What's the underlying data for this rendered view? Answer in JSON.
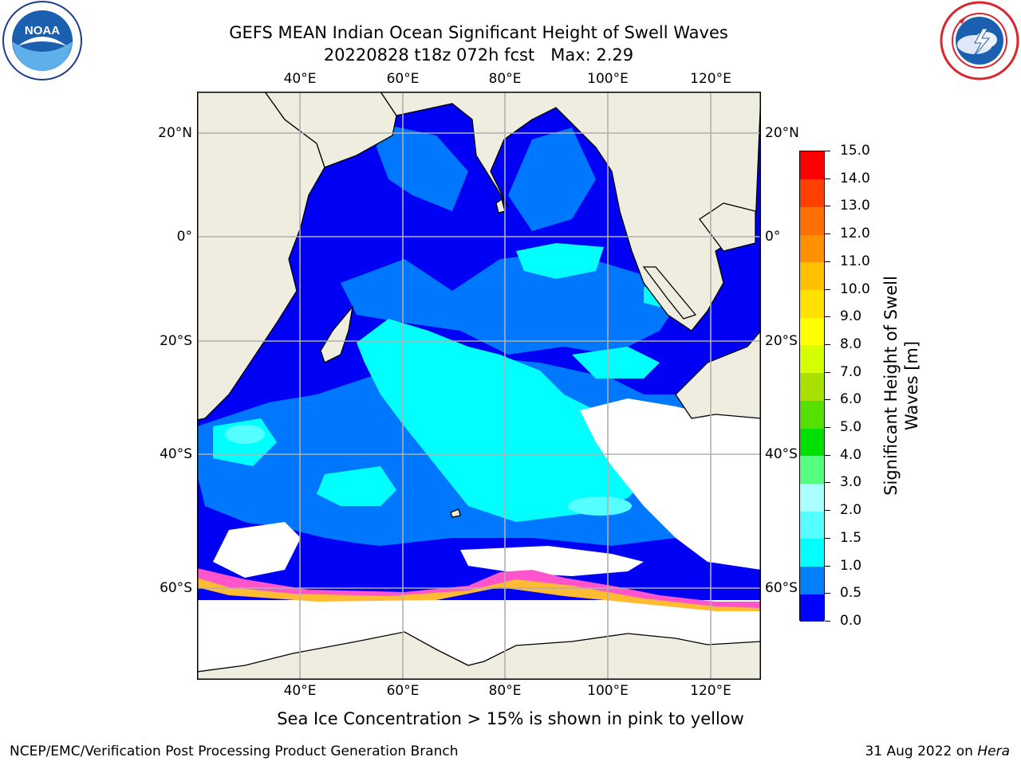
{
  "title": {
    "line1": "GEFS MEAN Indian Ocean Significant Height of Swell Waves",
    "line2": "20220828 t18z 072h fcst   Max: 2.29"
  },
  "logos": {
    "left": {
      "icon": "noaa-logo",
      "text": "NOAA",
      "ring_text": "NATIONAL OCEANIC AND ATMOSPHERIC ADMINISTRATION · U.S. DEPARTMENT OF COMMERCE"
    },
    "right": {
      "icon": "nws-logo",
      "ring_text": "NATIONAL WEATHER SERVICE"
    }
  },
  "map": {
    "lon_ticks": [
      "40°E",
      "60°E",
      "80°E",
      "100°E",
      "120°E"
    ],
    "lat_ticks": [
      "20°N",
      "0°",
      "20°S",
      "40°S",
      "60°S"
    ],
    "lon_range": [
      20,
      129
    ],
    "lat_range": [
      -73,
      27
    ],
    "colors": {
      "land": "#eeeddf",
      "ocean_dark": "#0000f5",
      "ocean_mid": "#0077ff",
      "swell_cyan": "#00ffff",
      "ice_pink": "#ff55cc",
      "ice_yellow": "#ffbb33",
      "ice_free": "#ffffff",
      "grid": "#b0b0b0"
    }
  },
  "colorbar": {
    "label": "Significant Height of Swell Waves [m]",
    "ticks": [
      "0.0",
      "0.5",
      "1.0",
      "1.5",
      "2.0",
      "3.0",
      "4.0",
      "5.0",
      "6.0",
      "7.0",
      "8.0",
      "9.0",
      "10.0",
      "11.0",
      "12.0",
      "13.0",
      "14.0",
      "15.0"
    ],
    "colors": [
      "#0000ff",
      "#0080ff",
      "#00ffff",
      "#55ffff",
      "#aaffff",
      "#55ff80",
      "#00e000",
      "#55e000",
      "#aae000",
      "#d5ff00",
      "#ffff00",
      "#ffe000",
      "#ffc000",
      "#ff9000",
      "#ff7000",
      "#ff4000",
      "#ff0000"
    ]
  },
  "footnote": "Sea Ice Concentration > 15% is shown in pink to yellow",
  "footer": {
    "left": "NCEP/EMC/Verification Post Processing Product Generation Branch",
    "right_prefix": "31 Aug 2022 on ",
    "right_host": "Hera"
  }
}
